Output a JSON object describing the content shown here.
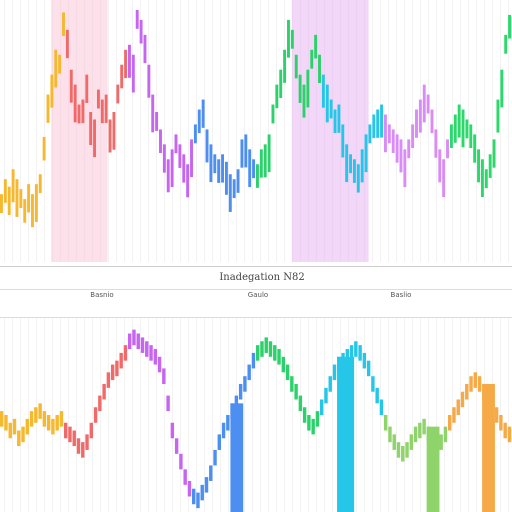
{
  "chart_data": [
    {
      "type": "bar",
      "panel": "top",
      "title": "",
      "grid": true,
      "highlight_bands": [
        {
          "from": 0.1,
          "to": 0.21,
          "color": "#f9c8d8"
        },
        {
          "from": 0.57,
          "to": 0.72,
          "color": "#e9b6f2"
        }
      ],
      "series_colors": [
        "#f5b82e",
        "#f06a6a",
        "#c565f0",
        "#4d8ff0",
        "#2cd16b",
        "#25c6e8",
        "#d98cf5",
        "#2bd96b"
      ],
      "values": [
        0.22,
        0.28,
        0.25,
        0.32,
        0.28,
        0.24,
        0.2,
        0.26,
        0.22,
        0.26,
        0.3,
        0.45,
        0.62,
        0.7,
        0.8,
        0.78,
        0.95,
        0.88,
        0.72,
        0.66,
        0.58,
        0.6,
        0.7,
        0.55,
        0.52,
        0.64,
        0.6,
        0.62,
        0.52,
        0.55,
        0.66,
        0.74,
        0.8,
        0.82,
        0.78,
        0.96,
        0.92,
        0.86,
        0.74,
        0.62,
        0.55,
        0.48,
        0.42,
        0.36,
        0.4,
        0.46,
        0.42,
        0.38,
        0.34,
        0.44,
        0.5,
        0.56,
        0.6,
        0.48,
        0.42,
        0.38,
        0.36,
        0.38,
        0.35,
        0.3,
        0.28,
        0.32,
        0.44,
        0.46,
        0.4,
        0.36,
        0.34,
        0.4,
        0.42,
        0.46,
        0.58,
        0.66,
        0.72,
        0.8,
        0.92,
        0.88,
        0.78,
        0.7,
        0.66,
        0.72,
        0.8,
        0.86,
        0.78,
        0.7,
        0.66,
        0.6,
        0.56,
        0.58,
        0.5,
        0.42,
        0.38,
        0.36,
        0.34,
        0.4,
        0.46,
        0.5,
        0.54,
        0.56,
        0.58,
        0.54,
        0.5,
        0.48,
        0.46,
        0.44,
        0.4,
        0.44,
        0.5,
        0.56,
        0.6,
        0.66,
        0.62,
        0.56,
        0.48,
        0.4,
        0.36,
        0.44,
        0.5,
        0.54,
        0.58,
        0.56,
        0.52,
        0.5,
        0.46,
        0.4,
        0.36,
        0.32,
        0.38,
        0.44,
        0.6,
        0.72,
        0.86,
        0.94
      ]
    },
    {
      "type": "line",
      "panel": "bottom",
      "title": "",
      "grid": true,
      "series_colors": [
        "#f5b82e",
        "#f06a6a",
        "#c565f0",
        "#4d8ff0",
        "#2cd16b",
        "#25c6e8",
        "#8fd36b",
        "#f5a947"
      ],
      "values": [
        0.52,
        0.5,
        0.46,
        0.48,
        0.42,
        0.44,
        0.48,
        0.52,
        0.54,
        0.56,
        0.52,
        0.5,
        0.48,
        0.5,
        0.52,
        0.46,
        0.44,
        0.42,
        0.38,
        0.36,
        0.4,
        0.46,
        0.54,
        0.6,
        0.66,
        0.72,
        0.76,
        0.78,
        0.82,
        0.86,
        0.92,
        0.94,
        0.92,
        0.9,
        0.88,
        0.86,
        0.84,
        0.8,
        0.74,
        0.6,
        0.46,
        0.38,
        0.3,
        0.22,
        0.16,
        0.12,
        0.1,
        0.14,
        0.18,
        0.24,
        0.32,
        0.4,
        0.46,
        0.5,
        0.56,
        0.6,
        0.66,
        0.7,
        0.76,
        0.82,
        0.86,
        0.88,
        0.9,
        0.88,
        0.86,
        0.84,
        0.8,
        0.76,
        0.7,
        0.66,
        0.6,
        0.54,
        0.5,
        0.48,
        0.52,
        0.58,
        0.64,
        0.7,
        0.76,
        0.8,
        0.82,
        0.84,
        0.86,
        0.88,
        0.86,
        0.82,
        0.78,
        0.7,
        0.64,
        0.58,
        0.5,
        0.44,
        0.4,
        0.36,
        0.34,
        0.36,
        0.4,
        0.44,
        0.46,
        0.48,
        0.44,
        0.4,
        0.38,
        0.4,
        0.44,
        0.5,
        0.54,
        0.58,
        0.62,
        0.66,
        0.7,
        0.72,
        0.7,
        0.66,
        0.62,
        0.58,
        0.54,
        0.5,
        0.46,
        0.44
      ]
    }
  ],
  "labels": {
    "center_title": "Inadegation N82",
    "tick_left": "Basnio",
    "tick_mid": "Gaulo",
    "tick_right": "Baslio"
  }
}
